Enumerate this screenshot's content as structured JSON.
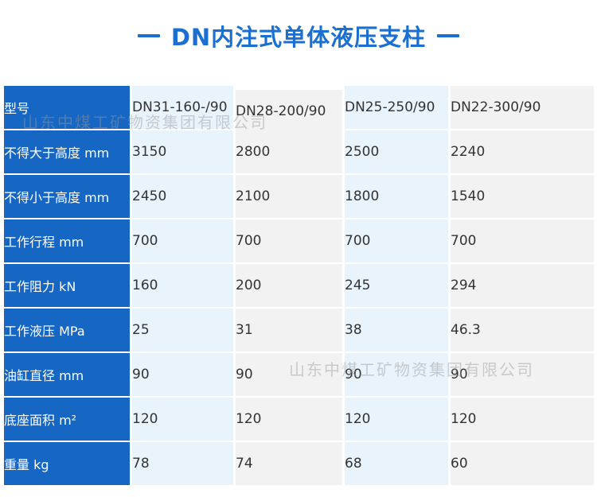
{
  "title": "DN内注式单体液压支柱",
  "watermark": "山东中煤工矿物资集团有限公司",
  "header": {
    "label": "型号",
    "models": [
      "DN31-160-/90",
      "DN28-200/90",
      "DN25-250/90",
      "DN22-300/90"
    ]
  },
  "rows": [
    {
      "label": "不得大于高度 mm",
      "values": [
        "3150",
        "2800",
        "2500",
        "2240"
      ]
    },
    {
      "label": "不得小于高度 mm",
      "values": [
        "2450",
        "2100",
        "1800",
        "1540"
      ]
    },
    {
      "label": "工作行程 mm",
      "values": [
        "700",
        "700",
        "700",
        "700"
      ]
    },
    {
      "label": "工作阻力 kN",
      "values": [
        "160",
        "200",
        "245",
        "294"
      ]
    },
    {
      "label": "工作液压 MPa",
      "values": [
        "25",
        "31",
        "38",
        "46.3"
      ]
    },
    {
      "label": "油缸直径 mm",
      "values": [
        "90",
        "90",
        "90",
        "90"
      ]
    },
    {
      "label": "底座面积 m²",
      "values": [
        "120",
        "120",
        "120",
        "120"
      ]
    },
    {
      "label": "重量 kg",
      "values": [
        "78",
        "74",
        "68",
        "60"
      ]
    }
  ],
  "colors": {
    "accent": "#1a6fd0",
    "label_bg": "#1667c4",
    "light_blue": "#e9f3fc",
    "light_gray": "#f2f2f2"
  }
}
